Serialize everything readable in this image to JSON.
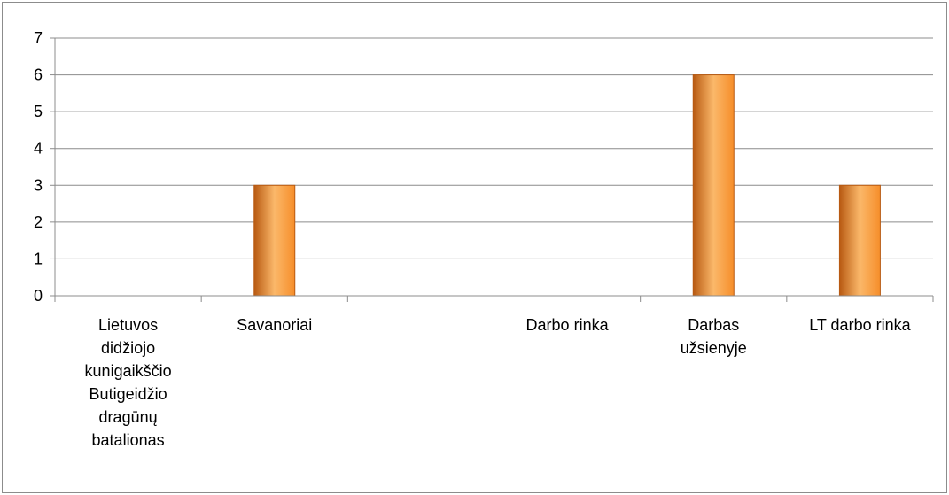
{
  "chart_data": {
    "type": "bar",
    "categories": [
      "Lietuvos didžiojo kunigaikščio Butigeidžio dragūnų batalionas",
      "Savanoriai",
      "",
      "Darbo rinka",
      "Darbas užsienyje",
      "LT darbo rinka"
    ],
    "category_display": [
      "Lietuvos\ndidžiojo\nkunigaikščio\nButigeidžio\ndragūnų\nbatalionas",
      "Savanoriai",
      "",
      "Darbo rinka",
      "Darbas\nužsienyje",
      "LT darbo rinka"
    ],
    "values": [
      0,
      3,
      0,
      0,
      6,
      3
    ],
    "title": "",
    "xlabel": "",
    "ylabel": "",
    "ylim": [
      0,
      7
    ],
    "yticks": [
      "0",
      "1",
      "2",
      "3",
      "4",
      "5",
      "6",
      "7"
    ],
    "grid": true,
    "legend": "none",
    "bar_color_light": "#fbb86a",
    "bar_color_mid": "#f68e2a",
    "bar_color_dark": "#b85a12",
    "gridline_color": "#8c8c8c"
  }
}
